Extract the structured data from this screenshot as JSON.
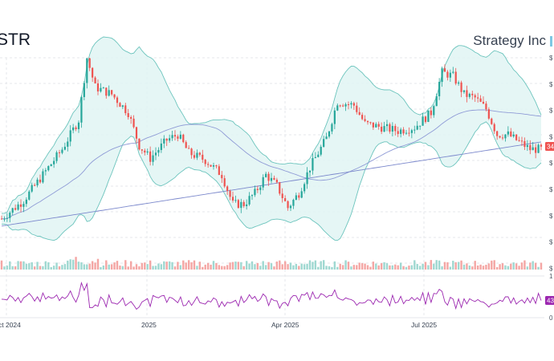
{
  "header": {
    "ticker": "STR",
    "company": "Strategy Inc"
  },
  "colors": {
    "up": "#26a69a",
    "down": "#ef5350",
    "band_fill": "#e0f4f3",
    "band_line": "#6cc4bd",
    "sma_mid": "#8f9bd6",
    "sma_long": "#7b88cc",
    "rsi": "#9c27b0",
    "grid": "#e5e7eb"
  },
  "chart_data": [
    {
      "type": "candlestick",
      "x_axis_labels": [
        "ct 2024",
        "2025",
        "Apr 2025",
        "Jul 2025"
      ],
      "price_axis_tick_label": "$",
      "last_price_badge": "34",
      "y_axis": {
        "ticks_visible": 9,
        "labels_truncated": true
      },
      "overlays": [
        "bollinger-bands",
        "moving-average-mid",
        "moving-average-long"
      ],
      "grid": true,
      "trend_path": [
        [
          0,
          0.12
        ],
        [
          8,
          0.22
        ],
        [
          16,
          0.38
        ],
        [
          22,
          0.5
        ],
        [
          28,
          0.66
        ],
        [
          31,
          1.0
        ],
        [
          34,
          0.84
        ],
        [
          40,
          0.8
        ],
        [
          46,
          0.7
        ],
        [
          50,
          0.52
        ],
        [
          54,
          0.45
        ],
        [
          60,
          0.55
        ],
        [
          64,
          0.58
        ],
        [
          68,
          0.48
        ],
        [
          74,
          0.44
        ],
        [
          80,
          0.36
        ],
        [
          84,
          0.2
        ],
        [
          88,
          0.2
        ],
        [
          92,
          0.26
        ],
        [
          96,
          0.36
        ],
        [
          100,
          0.3
        ],
        [
          104,
          0.18
        ],
        [
          108,
          0.26
        ],
        [
          112,
          0.4
        ],
        [
          118,
          0.56
        ],
        [
          122,
          0.76
        ],
        [
          128,
          0.74
        ],
        [
          132,
          0.64
        ],
        [
          138,
          0.62
        ],
        [
          144,
          0.6
        ],
        [
          150,
          0.62
        ],
        [
          156,
          0.7
        ],
        [
          160,
          0.92
        ],
        [
          164,
          0.9
        ],
        [
          168,
          0.8
        ],
        [
          172,
          0.78
        ],
        [
          176,
          0.72
        ],
        [
          180,
          0.58
        ],
        [
          184,
          0.58
        ],
        [
          188,
          0.54
        ],
        [
          192,
          0.5
        ],
        [
          196,
          0.5
        ]
      ]
    },
    {
      "type": "bar",
      "name": "volume",
      "relative_scale": true
    },
    {
      "type": "line",
      "name": "rsi",
      "axis_tick_labels": [
        "1",
        "0"
      ],
      "last_value_badge": "43"
    }
  ]
}
